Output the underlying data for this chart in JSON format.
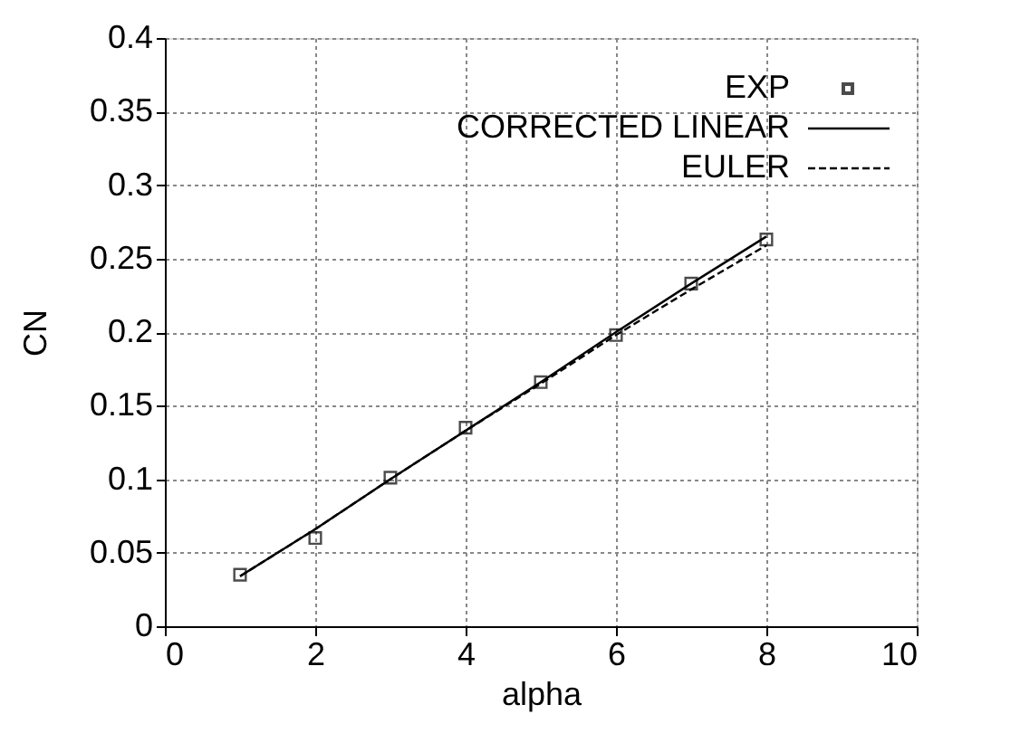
{
  "chart_data": {
    "type": "line",
    "xlabel": "alpha",
    "ylabel": "CN",
    "x": [
      1,
      2,
      3,
      4,
      5,
      6,
      7,
      8
    ],
    "xlim": [
      0,
      10
    ],
    "xticks": [
      0,
      2,
      4,
      6,
      8,
      10
    ],
    "ylim": [
      0,
      0.4
    ],
    "yticks": [
      0,
      0.05,
      0.1,
      0.15,
      0.2,
      0.25,
      0.3,
      0.35,
      0.4
    ],
    "grid": true,
    "legend": "top right",
    "series": [
      {
        "name": "EXP",
        "type": "scatter",
        "marker": "square",
        "color": "#000000",
        "values": [
          0.035,
          0.06,
          0.101,
          0.135,
          0.166,
          0.198,
          0.233,
          0.263
        ]
      },
      {
        "name": "CORRECTED LINEAR",
        "line_style": "solid",
        "marker": "none",
        "color": "#000000",
        "values": [
          0.034,
          0.066,
          0.1,
          0.133,
          0.166,
          0.2,
          0.233,
          0.265
        ]
      },
      {
        "name": "EULER",
        "line_style": "dashed",
        "marker": "none",
        "color": "#000000",
        "values": [
          0.034,
          0.066,
          0.1,
          0.133,
          0.165,
          0.198,
          0.229,
          0.259
        ]
      }
    ]
  }
}
